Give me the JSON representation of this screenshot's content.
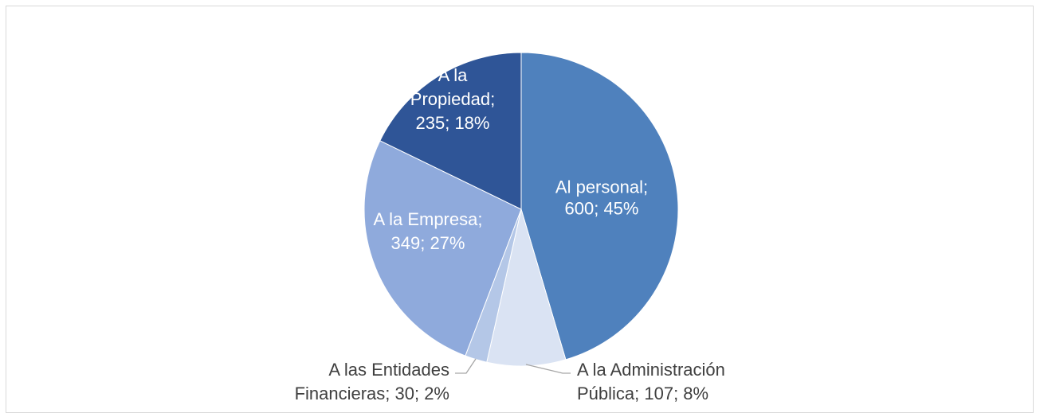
{
  "chart_data": {
    "type": "pie",
    "title": "",
    "legend": "none",
    "slices": [
      {
        "name": "Al personal",
        "value": 600,
        "percent": "45%",
        "color": "#4f81bd",
        "label_lines": [
          "Al personal;",
          "600; 45%"
        ]
      },
      {
        "name": "A la Administración Pública",
        "value": 107,
        "percent": "8%",
        "color": "#dae3f3",
        "label_lines": [
          "A la Administración",
          "Pública; 107; 8%"
        ]
      },
      {
        "name": "A las Entidades Financieras",
        "value": 30,
        "percent": "2%",
        "color": "#b4c7e7",
        "label_lines": [
          "A las Entidades",
          "Financieras; 30; 2%"
        ]
      },
      {
        "name": "A la Empresa",
        "value": 349,
        "percent": "27%",
        "color": "#8faadc",
        "label_lines": [
          "A la Empresa;",
          "349; 27%"
        ]
      },
      {
        "name": "A la Propiedad",
        "value": 235,
        "percent": "18%",
        "color": "#2f5597",
        "label_lines": [
          "A la",
          "Propiedad;",
          "235; 18%"
        ]
      }
    ]
  }
}
